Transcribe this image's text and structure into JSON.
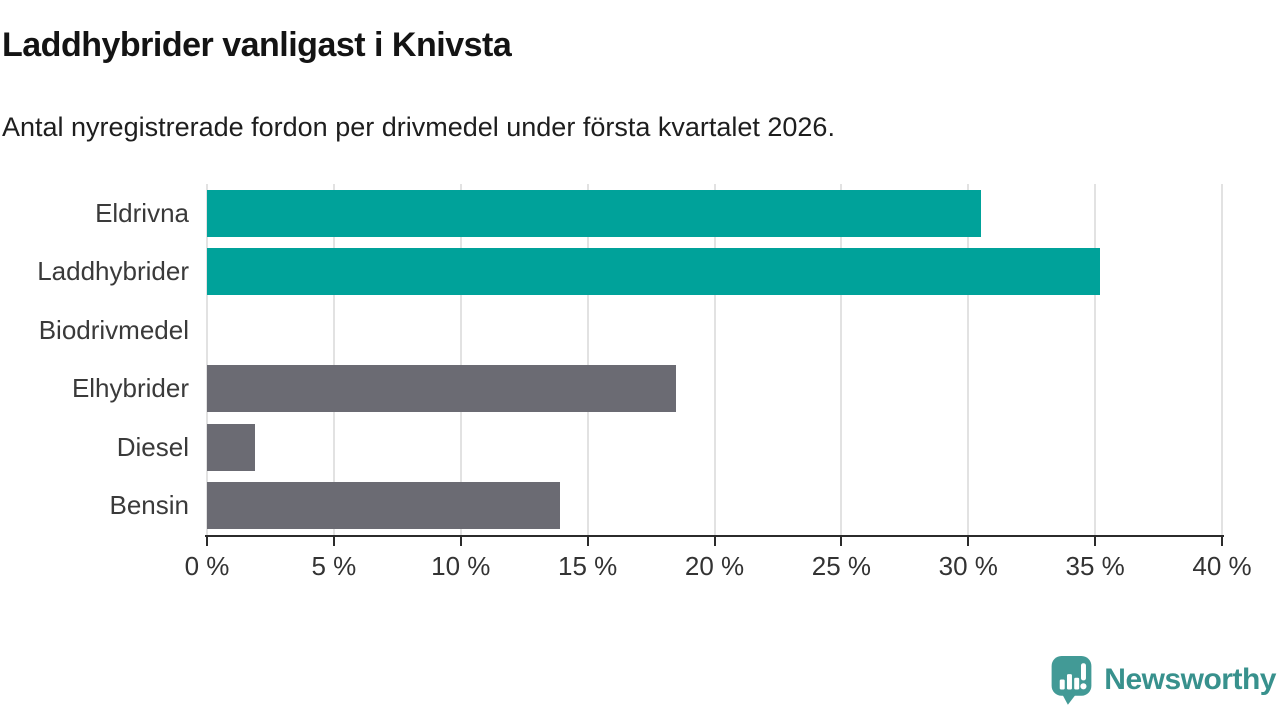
{
  "header": {
    "title": "Laddhybrider vanligast i Knivsta",
    "subtitle": "Antal nyregistrerade fordon per drivmedel under första kvartalet 2026."
  },
  "chart_data": {
    "type": "bar",
    "orientation": "horizontal",
    "title": "Laddhybrider vanligast i Knivsta",
    "subtitle": "Antal nyregistrerade fordon per drivmedel under första kvartalet 2026.",
    "categories": [
      "Eldrivna",
      "Laddhybrider",
      "Biodrivmedel",
      "Elhybrider",
      "Diesel",
      "Bensin"
    ],
    "values": [
      30.5,
      35.2,
      0,
      18.5,
      1.9,
      13.9
    ],
    "unit": "%",
    "xlim": [
      0,
      40
    ],
    "x_tick_values": [
      0,
      5,
      10,
      15,
      20,
      25,
      30,
      35,
      40
    ],
    "x_tick_labels": [
      "0 %",
      "5 %",
      "10 %",
      "15 %",
      "20 %",
      "25 %",
      "30 %",
      "35 %",
      "40 %"
    ],
    "bar_colors": [
      "#00a29a",
      "#00a29a",
      "#00a29a",
      "#6b6b73",
      "#6b6b73",
      "#6b6b73"
    ],
    "grid": true,
    "legend": false,
    "colors": {
      "teal": "#00a29a",
      "gray": "#6b6b73",
      "gridline": "#e2e2e2",
      "axis": "#2b2b2b",
      "tick_text": "#333333"
    }
  },
  "footer": {
    "logo_text": "Newsworthy",
    "logo_icon": "newsworthy-speech-bubble-chart-icon",
    "logo_color": "#3b9490"
  }
}
